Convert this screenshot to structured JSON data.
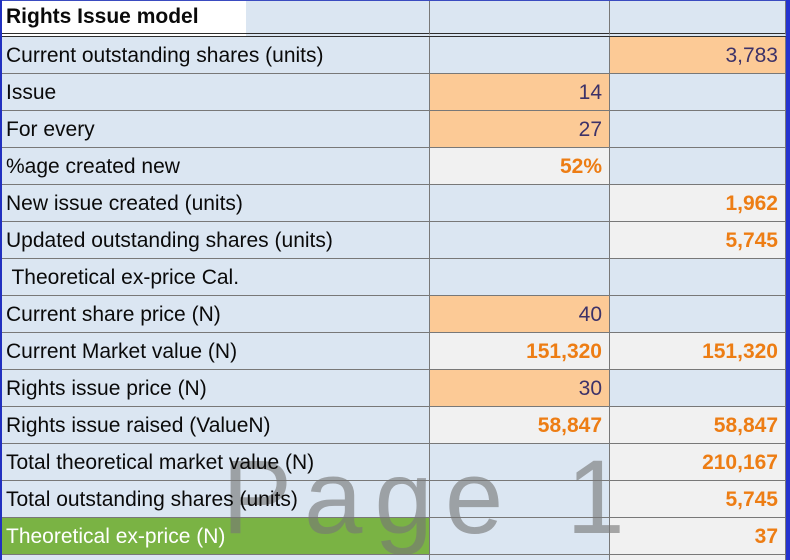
{
  "watermark": "Page 1",
  "colors": {
    "band_fill": "#dbe6f2",
    "input_fill": "#fcca96",
    "result_fill": "#f1f1f1",
    "highlight_green": "#7ab344",
    "number_orange": "#ed7d14",
    "number_navy": "#3d3268",
    "pagebreak_blue": "#2433cf",
    "grid_line": "#787878"
  },
  "rows": [
    {
      "label": "Rights Issue model",
      "v2": "",
      "v3": ""
    },
    {
      "label": "Current outstanding shares (units)",
      "v2": "",
      "v3": "3,783"
    },
    {
      "label": "Issue",
      "v2": "14",
      "v3": ""
    },
    {
      "label": "For every",
      "v2": "27",
      "v3": ""
    },
    {
      "label": "%age created new",
      "v2": "52%",
      "v3": ""
    },
    {
      "label": "New issue created (units)",
      "v2": "",
      "v3": "1,962"
    },
    {
      "label": "Updated outstanding shares (units)",
      "v2": "",
      "v3": "5,745"
    },
    {
      "label": " Theoretical ex-price Cal.",
      "v2": "",
      "v3": ""
    },
    {
      "label": "Current share price (N)",
      "v2": "40",
      "v3": ""
    },
    {
      "label": "Current Market value (N)",
      "v2": "151,320",
      "v3": "151,320"
    },
    {
      "label": "Rights issue price (N)",
      "v2": "30",
      "v3": ""
    },
    {
      "label": "Rights issue raised (ValueN)",
      "v2": "58,847",
      "v3": "58,847"
    },
    {
      "label": "Total theoretical market value (N)",
      "v2": "",
      "v3": "210,167"
    },
    {
      "label": "Total outstanding shares (units)",
      "v2": "",
      "v3": "5,745"
    },
    {
      "label": "Theoretical ex-price (N)",
      "v2": "",
      "v3": "37"
    }
  ]
}
